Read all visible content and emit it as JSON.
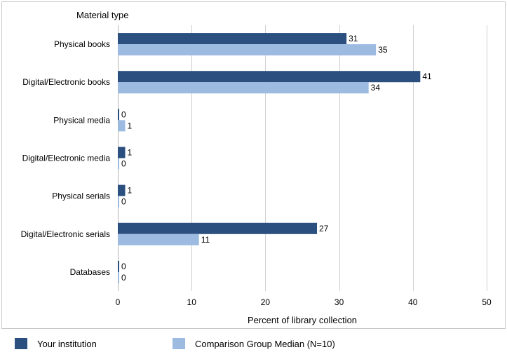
{
  "chart_data": {
    "type": "bar",
    "orientation": "horizontal",
    "yaxis_title": "Material type",
    "xlabel": "Percent of library collection",
    "categories": [
      "Physical books",
      "Digital/Electronic books",
      "Physical media",
      "Digital/Electronic media",
      "Physical serials",
      "Digital/Electronic serials",
      "Databases"
    ],
    "series": [
      {
        "name": "Your institution",
        "color": "#2b4f7e",
        "values": [
          31,
          41,
          0,
          1,
          1,
          27,
          0
        ]
      },
      {
        "name": "Comparison Group Median (N=10)",
        "color": "#9dbbe1",
        "values": [
          35,
          34,
          1,
          0,
          0,
          11,
          0
        ]
      }
    ],
    "xlim": [
      0,
      50
    ],
    "xticks": [
      0,
      10,
      20,
      30,
      40,
      50
    ],
    "grid": true,
    "legend_position": "bottom"
  }
}
